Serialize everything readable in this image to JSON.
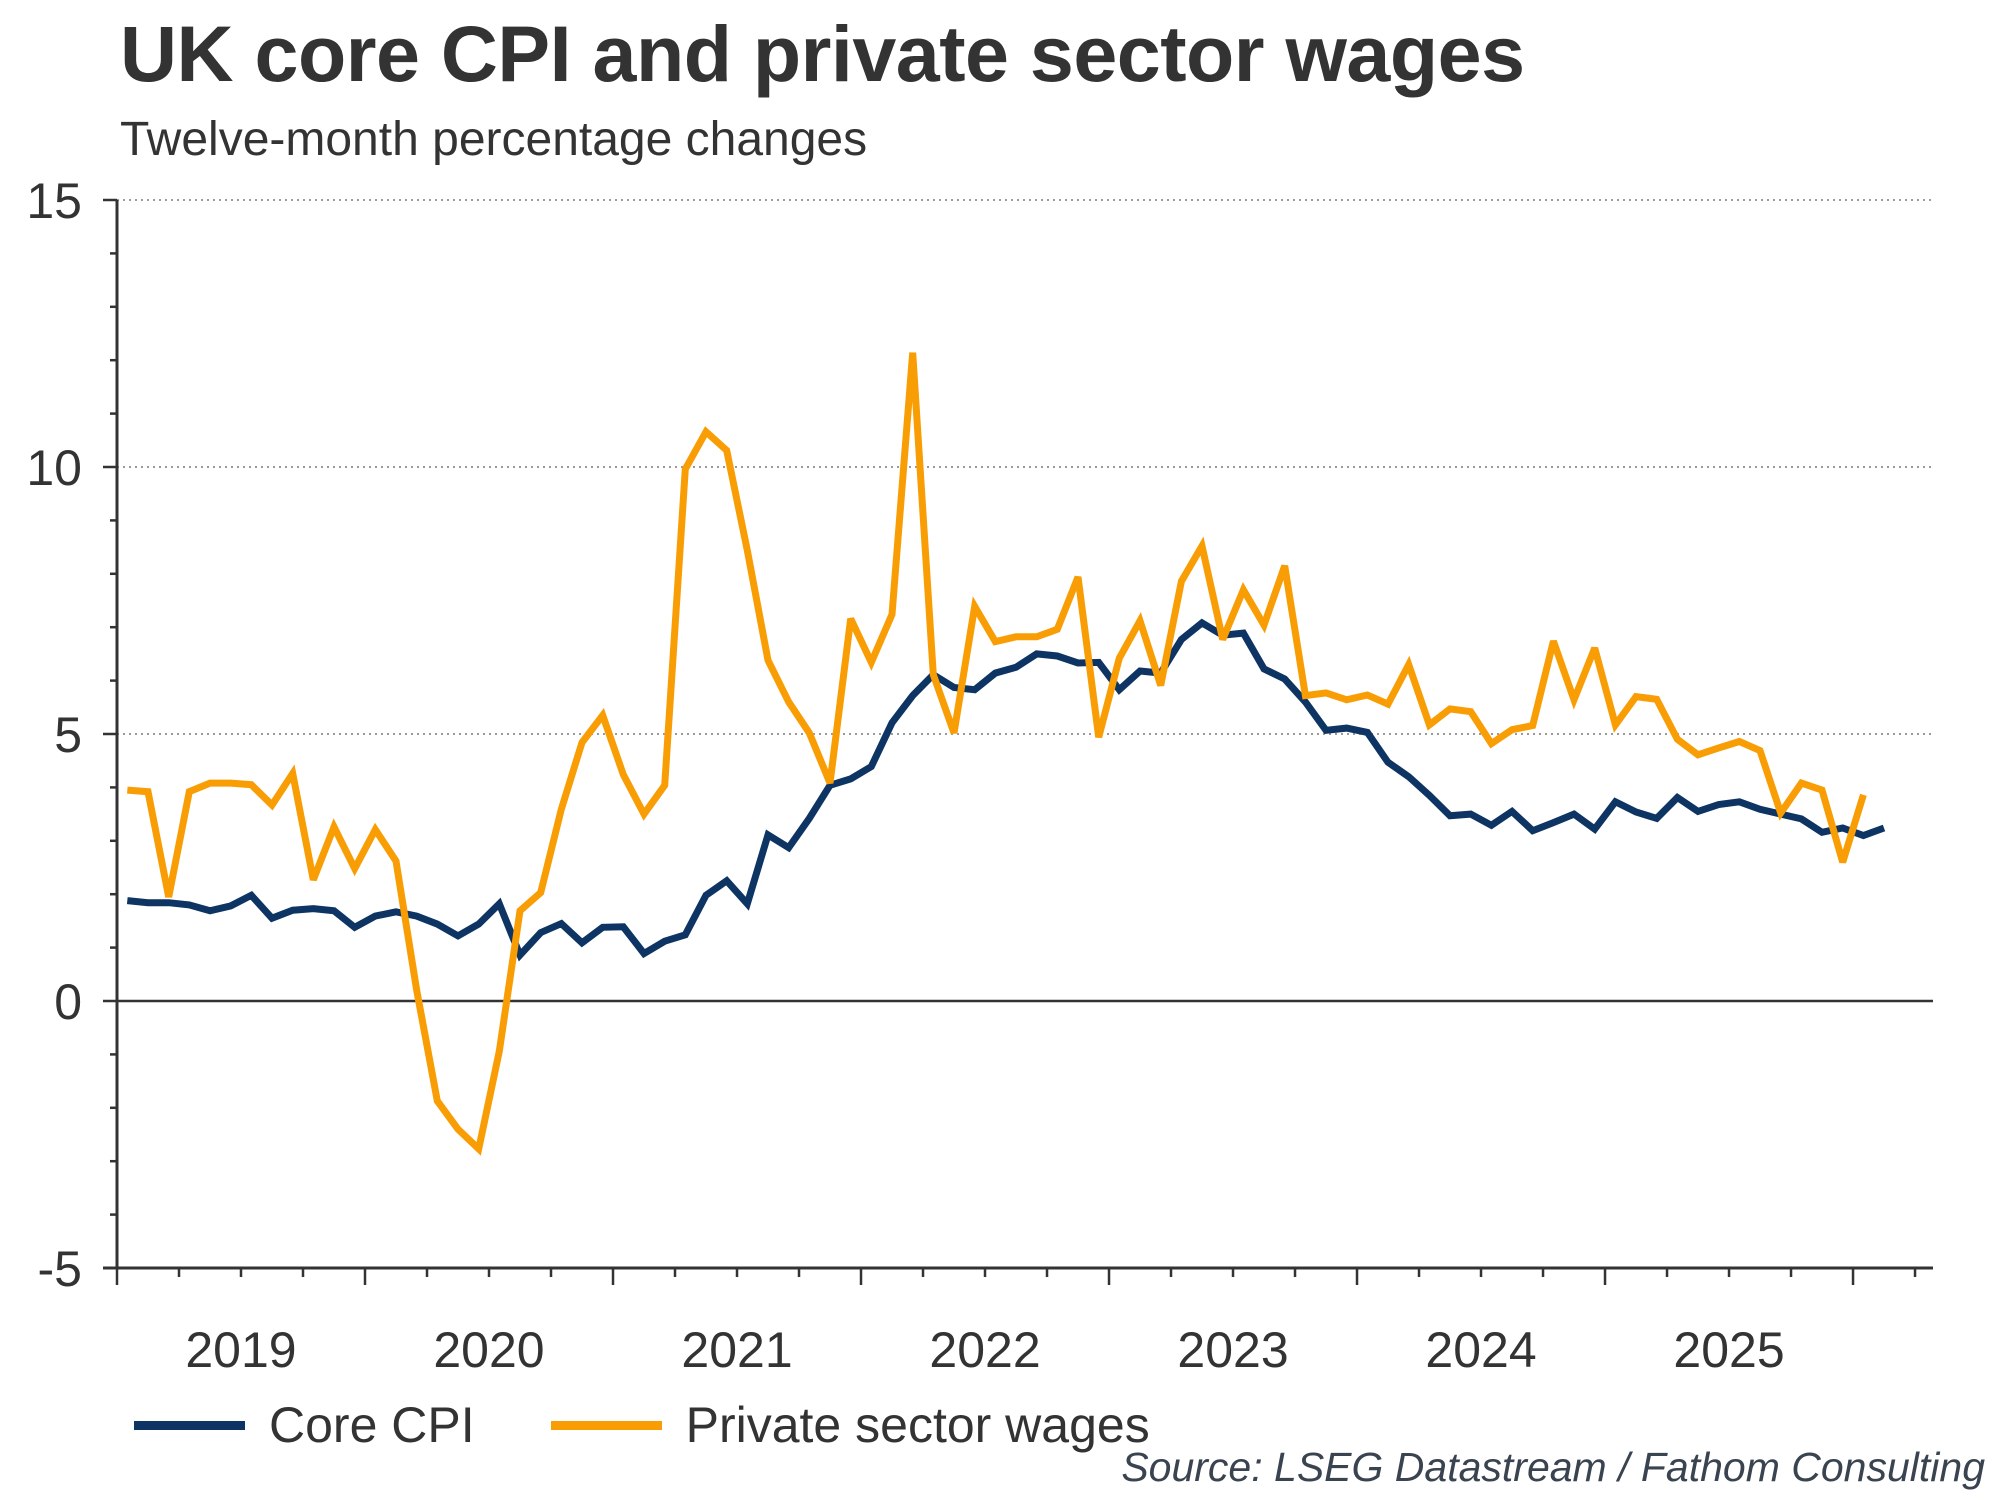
{
  "title": "UK core CPI and private sector wages",
  "subtitle": "Twelve-month percentage changes",
  "source": "Source: LSEG Datastream / Fathom Consulting",
  "chart_data": {
    "type": "line",
    "title": "UK core CPI and private sector wages",
    "subtitle": "Twelve-month percentage changes",
    "xlabel": "",
    "ylabel": "",
    "frequency": "monthly",
    "start": "2019-01",
    "x_range": [
      "2019-01",
      "2026-04"
    ],
    "ylim": [
      -5,
      15
    ],
    "yticks": [
      -5,
      0,
      5,
      10,
      15
    ],
    "ytick_labels": [
      "-5",
      "0",
      "5",
      "10",
      "15"
    ],
    "xtick_labels": [
      "2019",
      "2020",
      "2021",
      "2022",
      "2023",
      "2024",
      "2025"
    ],
    "grid": "horizontal dotted at 5, 10, 15; solid line at 0",
    "legend": "bottom-left",
    "series": [
      {
        "name": "Core CPI",
        "color": "#0d3463",
        "values": [
          1.88,
          1.84,
          1.84,
          1.8,
          1.69,
          1.78,
          1.98,
          1.55,
          1.7,
          1.73,
          1.69,
          1.38,
          1.59,
          1.67,
          1.59,
          1.44,
          1.22,
          1.44,
          1.82,
          0.86,
          1.28,
          1.45,
          1.09,
          1.38,
          1.39,
          0.89,
          1.12,
          1.24,
          1.98,
          2.25,
          1.82,
          3.11,
          2.87,
          3.42,
          4.04,
          4.16,
          4.39,
          5.21,
          5.72,
          6.11,
          5.87,
          5.83,
          6.14,
          6.25,
          6.5,
          6.46,
          6.33,
          6.34,
          5.83,
          6.18,
          6.14,
          6.77,
          7.08,
          6.85,
          6.89,
          6.22,
          6.03,
          5.6,
          5.07,
          5.11,
          5.03,
          4.47,
          4.2,
          3.85,
          3.47,
          3.5,
          3.29,
          3.55,
          3.19,
          3.34,
          3.5,
          3.22,
          3.73,
          3.54,
          3.42,
          3.81,
          3.55,
          3.68,
          3.73,
          3.59,
          3.5,
          3.41,
          3.16,
          3.24,
          3.1,
          3.24
        ]
      },
      {
        "name": "Private sector wages",
        "color": "#f99d05",
        "values": [
          3.95,
          3.92,
          1.95,
          3.92,
          4.08,
          4.08,
          4.05,
          3.67,
          4.26,
          2.27,
          3.26,
          2.48,
          3.21,
          2.62,
          0.2,
          -1.87,
          -2.4,
          -2.77,
          -0.94,
          1.69,
          2.03,
          3.59,
          4.84,
          5.35,
          4.24,
          3.5,
          4.04,
          9.96,
          10.66,
          10.31,
          8.44,
          6.38,
          5.6,
          5.02,
          4.08,
          7.16,
          6.34,
          7.24,
          12.14,
          6.11,
          5.02,
          7.39,
          6.73,
          6.82,
          6.82,
          6.96,
          7.94,
          4.94,
          6.42,
          7.12,
          5.91,
          7.86,
          8.52,
          6.77,
          7.7,
          7.04,
          8.15,
          5.72,
          5.77,
          5.64,
          5.73,
          5.56,
          6.3,
          5.17,
          5.47,
          5.42,
          4.82,
          5.08,
          5.16,
          6.74,
          5.64,
          6.61,
          5.17,
          5.7,
          5.65,
          4.9,
          4.61,
          4.74,
          4.86,
          4.69,
          3.52,
          4.08,
          3.95,
          2.6,
          3.86
        ]
      }
    ]
  }
}
